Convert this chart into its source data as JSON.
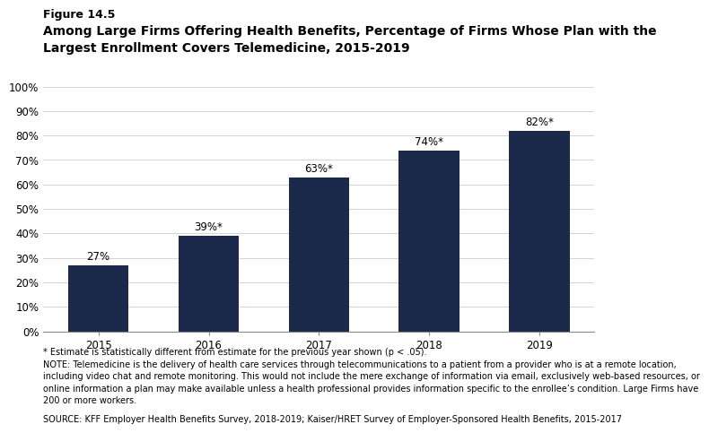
{
  "figure_label": "Figure 14.5",
  "title_line1": "Among Large Firms Offering Health Benefits, Percentage of Firms Whose Plan with the",
  "title_line2": "Largest Enrollment Covers Telemedicine, 2015-2019",
  "categories": [
    "2015",
    "2016",
    "2017",
    "2018",
    "2019"
  ],
  "values": [
    27,
    39,
    63,
    74,
    82
  ],
  "bar_labels": [
    "27%",
    "39%*",
    "63%*",
    "74%*",
    "82%*"
  ],
  "bar_color": "#1b2a4a",
  "ylim": [
    0,
    100
  ],
  "yticks": [
    0,
    10,
    20,
    30,
    40,
    50,
    60,
    70,
    80,
    90,
    100
  ],
  "ytick_labels": [
    "0%",
    "10%",
    "20%",
    "30%",
    "40%",
    "50%",
    "60%",
    "70%",
    "80%",
    "90%",
    "100%"
  ],
  "background_color": "#ffffff",
  "footnote1": "* Estimate is statistically different from estimate for the previous year shown (p < .05).",
  "footnote2": "NOTE: Telemedicine is the delivery of health care services through telecommunications to a patient from a provider who is at a remote location,\nincluding video chat and remote monitoring. This would not include the mere exchange of information via email, exclusively web-based resources, or\nonline information a plan may make available unless a health professional provides information specific to the enrollee’s condition. Large Firms have\n200 or more workers.",
  "footnote3": "SOURCE: KFF Employer Health Benefits Survey, 2018-2019; Kaiser/HRET Survey of Employer-Sponsored Health Benefits, 2015-2017",
  "bar_label_fontsize": 8.5,
  "tick_fontsize": 8.5,
  "footnote_fontsize": 7.0,
  "figure_label_fontsize": 9,
  "title_fontsize": 10
}
